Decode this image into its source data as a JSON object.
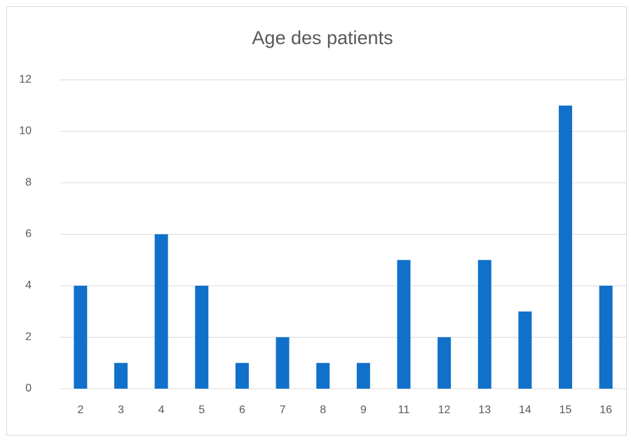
{
  "chart_data": {
    "type": "bar",
    "title": "Age des patients",
    "categories": [
      "2",
      "3",
      "4",
      "5",
      "6",
      "7",
      "8",
      "9",
      "11",
      "12",
      "13",
      "14",
      "15",
      "16"
    ],
    "values": [
      4,
      1,
      6,
      4,
      1,
      2,
      1,
      1,
      5,
      2,
      5,
      3,
      11,
      4
    ],
    "color": "#1070ca",
    "ylim": [
      0,
      12
    ],
    "yticks": [
      0,
      2,
      4,
      6,
      8,
      10,
      12
    ],
    "grid": true
  }
}
